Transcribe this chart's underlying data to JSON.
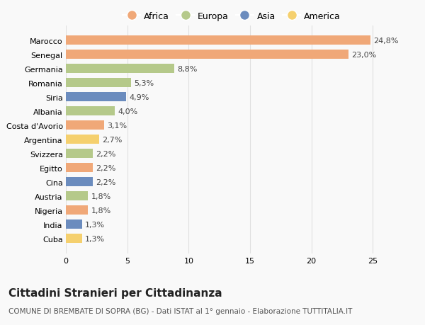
{
  "categories": [
    "Marocco",
    "Senegal",
    "Germania",
    "Romania",
    "Siria",
    "Albania",
    "Costa d'Avorio",
    "Argentina",
    "Svizzera",
    "Egitto",
    "Cina",
    "Austria",
    "Nigeria",
    "India",
    "Cuba"
  ],
  "values": [
    24.8,
    23.0,
    8.8,
    5.3,
    4.9,
    4.0,
    3.1,
    2.7,
    2.2,
    2.2,
    2.2,
    1.8,
    1.8,
    1.3,
    1.3
  ],
  "labels": [
    "24,8%",
    "23,0%",
    "8,8%",
    "5,3%",
    "4,9%",
    "4,0%",
    "3,1%",
    "2,7%",
    "2,2%",
    "2,2%",
    "2,2%",
    "1,8%",
    "1,8%",
    "1,3%",
    "1,3%"
  ],
  "continents": [
    "Africa",
    "Africa",
    "Europa",
    "Europa",
    "Asia",
    "Europa",
    "Africa",
    "America",
    "Europa",
    "Africa",
    "Asia",
    "Europa",
    "Africa",
    "Asia",
    "America"
  ],
  "continent_colors": {
    "Africa": "#F0A878",
    "Europa": "#B5C98A",
    "Asia": "#6B8CBE",
    "America": "#F5D06E"
  },
  "legend_order": [
    "Africa",
    "Europa",
    "Asia",
    "America"
  ],
  "title": "Cittadini Stranieri per Cittadinanza",
  "subtitle": "COMUNE DI BREMBATE DI SOPRA (BG) - Dati ISTAT al 1° gennaio - Elaborazione TUTTITALIA.IT",
  "xlim": [
    0,
    27
  ],
  "xticks": [
    0,
    5,
    10,
    15,
    20,
    25
  ],
  "background_color": "#f9f9f9",
  "grid_color": "#e0e0e0",
  "title_fontsize": 11,
  "subtitle_fontsize": 7.5,
  "label_fontsize": 8,
  "tick_fontsize": 8,
  "legend_fontsize": 9
}
